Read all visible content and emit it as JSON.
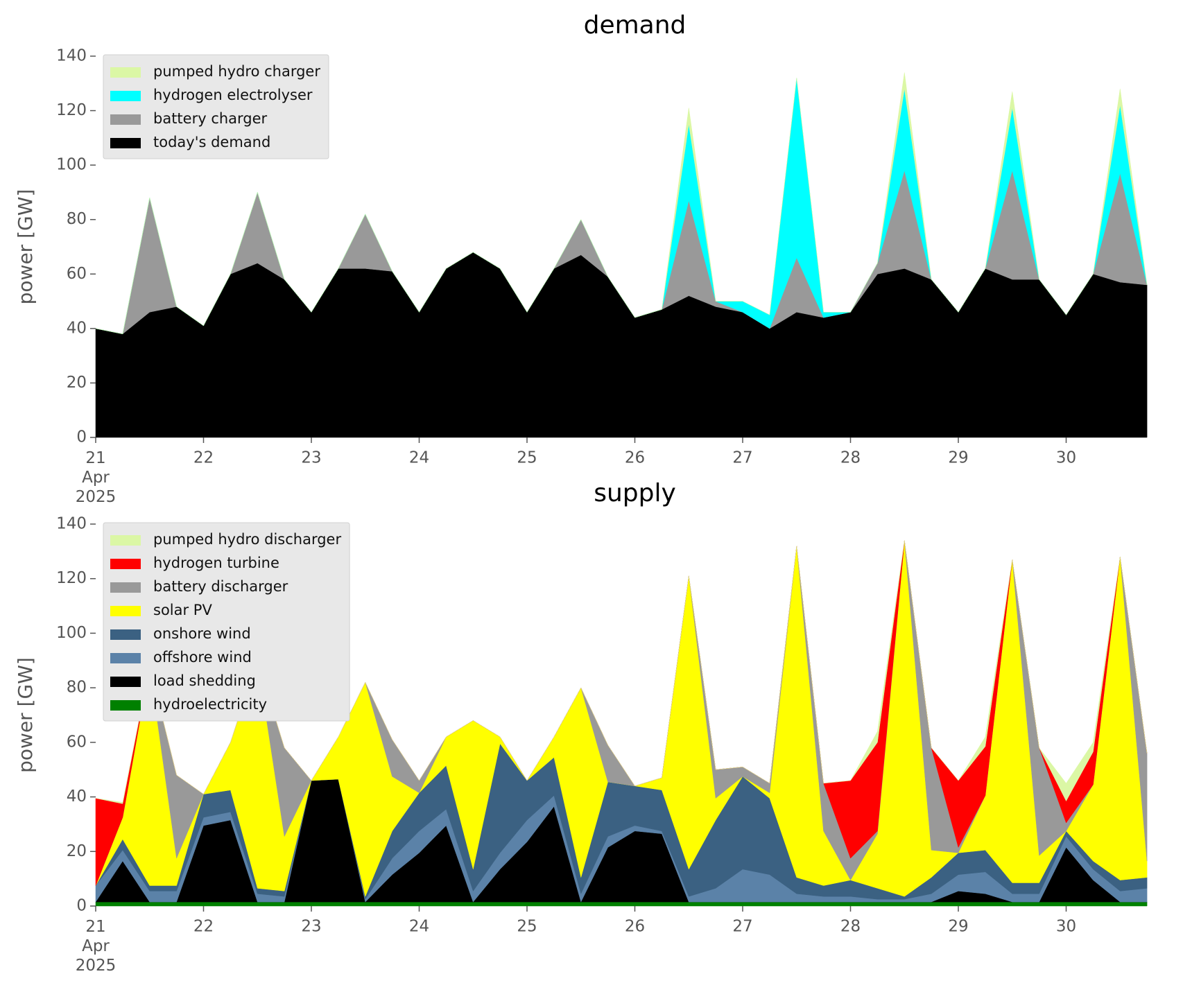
{
  "chart_data": [
    {
      "type": "stacked_area",
      "title": "demand",
      "ylabel": "power [GW]",
      "x": [
        21,
        21.25,
        21.5,
        21.75,
        22,
        22.25,
        22.5,
        22.75,
        23,
        23.25,
        23.5,
        23.75,
        24,
        24.25,
        24.5,
        24.75,
        25,
        25.25,
        25.5,
        25.75,
        26,
        26.25,
        26.5,
        26.75,
        27,
        27.25,
        27.5,
        27.75,
        28,
        28.25,
        28.5,
        28.75,
        29,
        29.25,
        29.5,
        29.75,
        30,
        30.25,
        30.5,
        30.75
      ],
      "xlim": [
        21,
        31
      ],
      "xticks": [
        {
          "value": 21,
          "label": "21\nApr\n2025"
        },
        22,
        23,
        24,
        25,
        26,
        27,
        28,
        29,
        30
      ],
      "ylim": [
        0,
        140
      ],
      "yticks": [
        0,
        20,
        40,
        60,
        80,
        100,
        120,
        140
      ],
      "series": [
        {
          "name": "pumped hydro charger",
          "color": "#dbf7a5",
          "values": [
            0,
            0,
            0,
            0,
            0,
            0,
            0,
            0,
            0,
            0,
            0,
            0,
            0,
            0,
            0,
            0,
            0,
            0,
            0,
            0,
            0,
            0,
            6,
            0,
            0,
            0,
            0,
            0,
            0,
            0,
            6,
            0,
            0,
            0,
            6,
            0,
            0,
            0,
            6,
            0
          ]
        },
        {
          "name": "hydrogen electrolyser",
          "color": "#00ffff",
          "values": [
            0,
            0,
            0,
            0,
            0,
            0,
            0,
            0,
            0,
            0,
            0,
            0,
            0,
            0,
            0,
            0,
            0,
            0,
            0,
            0,
            0,
            0,
            28,
            0,
            4,
            5,
            66,
            2,
            0,
            0,
            30,
            0,
            0,
            0,
            23,
            0,
            0,
            0,
            25,
            0
          ]
        },
        {
          "name": "battery charger",
          "color": "#999999",
          "values": [
            0,
            0,
            42,
            0,
            0,
            0,
            26,
            0,
            0,
            0,
            20,
            0,
            0,
            0,
            0,
            0,
            0,
            0,
            13,
            0,
            0,
            0,
            35,
            2,
            0,
            0,
            20,
            0,
            0,
            4,
            36,
            0,
            0,
            0,
            40,
            0,
            0,
            0,
            40,
            0
          ]
        },
        {
          "name": "today's demand",
          "color": "#000000",
          "values": [
            40,
            38,
            46,
            48,
            41,
            60,
            64,
            58,
            46,
            62,
            62,
            61,
            46,
            62,
            68,
            62,
            46,
            62,
            67,
            59,
            44,
            47,
            52,
            48,
            46,
            40,
            46,
            44,
            46,
            60,
            62,
            58,
            46,
            62,
            58,
            58,
            45,
            60,
            57,
            56
          ]
        }
      ]
    },
    {
      "type": "stacked_area",
      "title": "supply",
      "ylabel": "power [GW]",
      "x": [
        21,
        21.25,
        21.5,
        21.75,
        22,
        22.25,
        22.5,
        22.75,
        23,
        23.25,
        23.5,
        23.75,
        24,
        24.25,
        24.5,
        24.75,
        25,
        25.25,
        25.5,
        25.75,
        26,
        26.25,
        26.5,
        26.75,
        27,
        27.25,
        27.5,
        27.75,
        28,
        28.25,
        28.5,
        28.75,
        29,
        29.25,
        29.5,
        29.75,
        30,
        30.25,
        30.5,
        30.75
      ],
      "xlim": [
        21,
        31
      ],
      "xticks": [
        {
          "value": 21,
          "label": "21\nApr\n2025"
        },
        22,
        23,
        24,
        25,
        26,
        27,
        28,
        29,
        30
      ],
      "ylim": [
        0,
        140
      ],
      "yticks": [
        0,
        20,
        40,
        60,
        80,
        100,
        120,
        140
      ],
      "series": [
        {
          "name": "pumped hydro discharger",
          "color": "#dbf7a5",
          "values": [
            0,
            0.5,
            0,
            0,
            0,
            0,
            0,
            0,
            0,
            0,
            0,
            0,
            0,
            0,
            0,
            0,
            0,
            0,
            0,
            0,
            0,
            0,
            0,
            0,
            0,
            0,
            0,
            0,
            0,
            4,
            0,
            0,
            0,
            3.5,
            0,
            0,
            6.5,
            3.5,
            0,
            0
          ]
        },
        {
          "name": "hydrogen turbine",
          "color": "#ff0000",
          "values": [
            32,
            5,
            0,
            0,
            0,
            0,
            0,
            0,
            0,
            0,
            0,
            0,
            0,
            0,
            0,
            0,
            0,
            0,
            0,
            0,
            0,
            0,
            0,
            0,
            0,
            0,
            0,
            0,
            28.5,
            32.5,
            0,
            0,
            24.5,
            18,
            0,
            0,
            8,
            12,
            0,
            0
          ]
        },
        {
          "name": "battery discharger",
          "color": "#999999",
          "values": [
            0,
            0,
            0,
            30.5,
            0,
            0,
            0,
            32.5,
            0,
            0,
            0,
            13.5,
            4.5,
            0,
            0,
            0,
            0,
            0,
            0,
            13.5,
            0,
            0,
            0,
            10.5,
            3.5,
            3.5,
            0,
            17.5,
            8,
            1,
            0,
            37.5,
            2,
            0,
            0,
            39.5,
            3,
            0,
            0,
            39.5
          ]
        },
        {
          "name": "solar PV",
          "color": "#ffff00",
          "values": [
            0,
            8,
            80.5,
            10,
            0,
            17.5,
            83.5,
            20,
            0,
            15.5,
            78.5,
            20,
            0,
            10.5,
            54.5,
            2.5,
            0,
            7.5,
            69.5,
            0,
            0,
            4.5,
            107.5,
            8,
            0,
            2,
            121.5,
            20,
            0,
            20,
            130.5,
            10,
            0,
            20,
            118.5,
            10,
            0,
            28,
            118.5,
            6
          ]
        },
        {
          "name": "onshore wind",
          "color": "#3b6182",
          "values": [
            0,
            4,
            2,
            2,
            8.5,
            8,
            2,
            2,
            0,
            0,
            1,
            10,
            14,
            16,
            8,
            40,
            14.5,
            14,
            6,
            20,
            14.5,
            15,
            10,
            25,
            34,
            28,
            6,
            4,
            6,
            4,
            1,
            6,
            8,
            8,
            4,
            4,
            2,
            3,
            4,
            4
          ]
        },
        {
          "name": "offshore wind",
          "color": "#5b82a8",
          "values": [
            6,
            4,
            4,
            4,
            3,
            3,
            3,
            2,
            0,
            0,
            1,
            6,
            8,
            6,
            4,
            6,
            8,
            4,
            3,
            4,
            2,
            1,
            2,
            5,
            12,
            10,
            3,
            2,
            2,
            1,
            1,
            3,
            6,
            8,
            3,
            3,
            4,
            4,
            4,
            5
          ]
        },
        {
          "name": "load shedding",
          "color": "#000000",
          "values": [
            0,
            15,
            0,
            0,
            28,
            30,
            0,
            0,
            44.5,
            45,
            0,
            10,
            18,
            28,
            0,
            12,
            22,
            35,
            0,
            20,
            26,
            25,
            0,
            0,
            0,
            0,
            0,
            0,
            0,
            0,
            0,
            0,
            4,
            3,
            0,
            0,
            20,
            8,
            0,
            0
          ]
        },
        {
          "name": "hydroelectricity",
          "color": "#008000",
          "values": [
            1.5,
            1.5,
            1.5,
            1.5,
            1.5,
            1.5,
            1.5,
            1.5,
            1.5,
            1.5,
            1.5,
            1.5,
            1.5,
            1.5,
            1.5,
            1.5,
            1.5,
            1.5,
            1.5,
            1.5,
            1.5,
            1.5,
            1.5,
            1.5,
            1.5,
            1.5,
            1.5,
            1.5,
            1.5,
            1.5,
            1.5,
            1.5,
            1.5,
            1.5,
            1.5,
            1.5,
            1.5,
            1.5,
            1.5,
            1.5
          ]
        }
      ]
    }
  ]
}
